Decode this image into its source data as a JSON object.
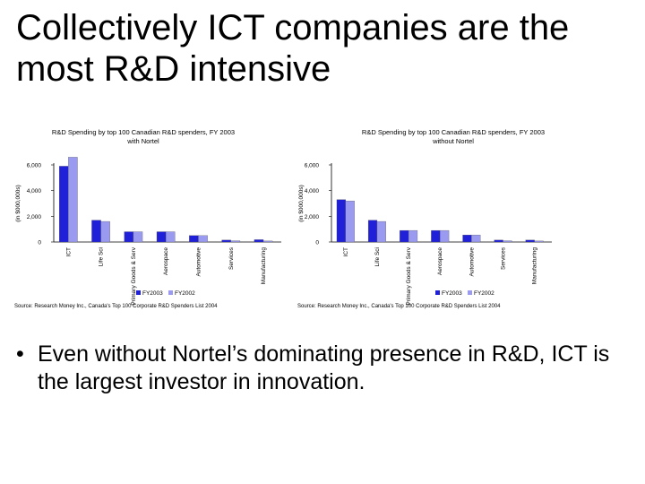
{
  "slide": {
    "title_line1": "Collectively ICT companies are the",
    "title_line2": "most R&D intensive",
    "bullet_symbol": "•",
    "bullet_text": "Even without Nortel’s dominating presence in R&D, ICT is the largest investor in innovation."
  },
  "colors": {
    "series1": "#2020d8",
    "series2": "#9a9af0"
  },
  "chart_data": [
    {
      "type": "bar",
      "title": "R&D Spending by top 100 Canadian R&D spenders, FY 2003",
      "subtitle": "with Nortel",
      "ylabel": "(in $000,000s)",
      "ylim": [
        0,
        6000
      ],
      "yticks": [
        "0",
        "2,000",
        "4,000",
        "6,000"
      ],
      "categories": [
        "ICT",
        "Life Sci",
        "Primary Goods & Serv",
        "Aerospace",
        "Automotive",
        "Services",
        "Manufacturing"
      ],
      "series": [
        {
          "name": "FY2003",
          "values": [
            5900,
            1700,
            800,
            800,
            500,
            150,
            180
          ]
        },
        {
          "name": "FY2002",
          "values": [
            6600,
            1600,
            800,
            800,
            500,
            100,
            80
          ]
        }
      ],
      "legend_position": "bottom",
      "source": "Source: Research Money Inc., Canada's Top 100 Corporate R&D Spenders List 2004"
    },
    {
      "type": "bar",
      "title": "R&D Spending by top 100 Canadian R&D spenders, FY 2003",
      "subtitle": "without Nortel",
      "ylabel": "(in $000,000s)",
      "ylim": [
        0,
        6000
      ],
      "yticks": [
        "0",
        "2,000",
        "4,000",
        "6,000"
      ],
      "categories": [
        "ICT",
        "Life Sci",
        "Primary Goods & Serv",
        "Aerospace",
        "Automotive",
        "Services",
        "Manufacturing"
      ],
      "series": [
        {
          "name": "FY2003",
          "values": [
            3300,
            1700,
            900,
            900,
            550,
            150,
            150
          ]
        },
        {
          "name": "FY2002",
          "values": [
            3200,
            1600,
            900,
            900,
            550,
            100,
            80
          ]
        }
      ],
      "legend_position": "bottom",
      "source": "Source: Research Money Inc., Canada's Top 100 Corporate R&D Spenders List 2004"
    }
  ]
}
